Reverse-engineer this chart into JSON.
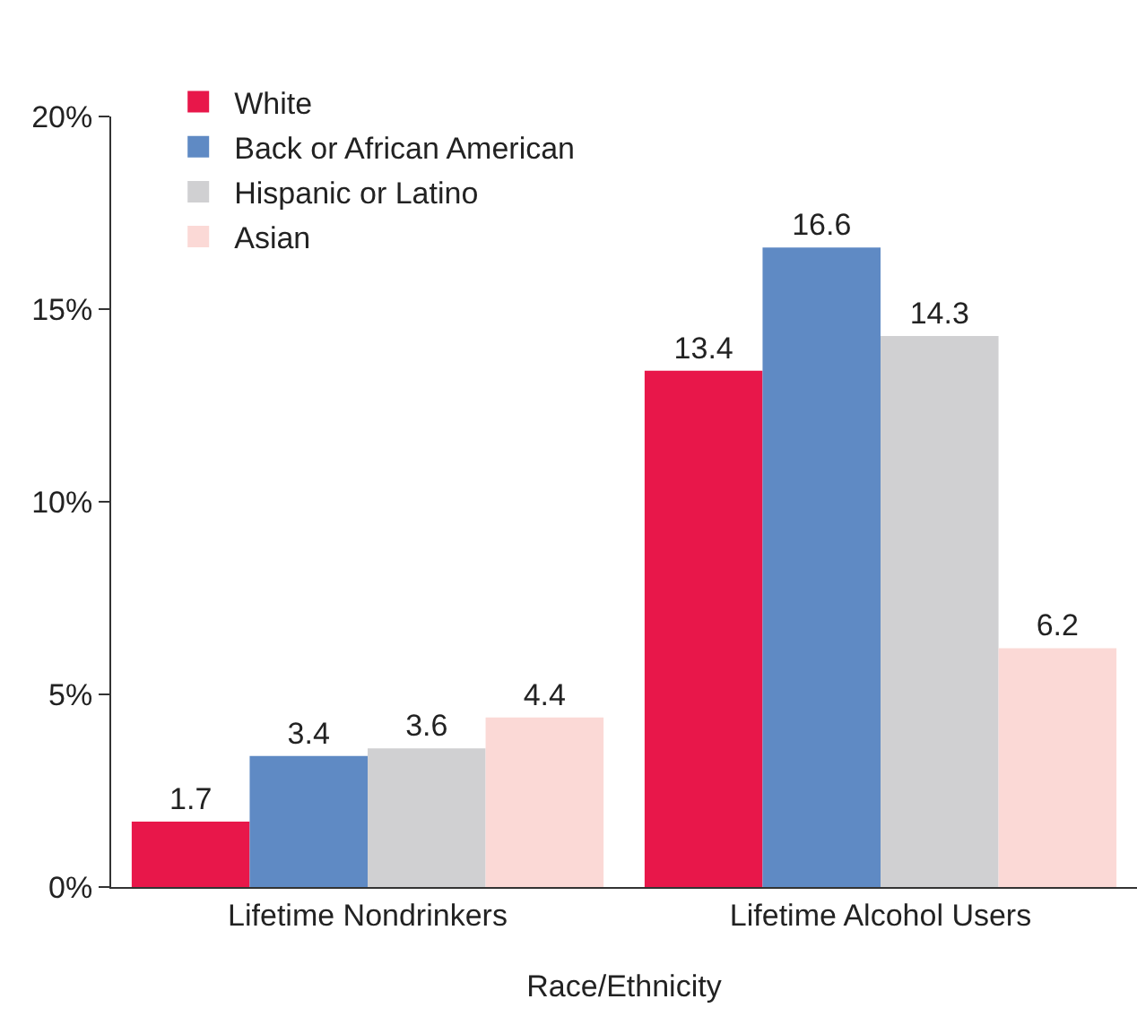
{
  "chart_data": {
    "type": "bar",
    "xlabel": "Race/Ethnicity",
    "categories": [
      "Lifetime Nondrinkers",
      "Lifetime Alcohol Users"
    ],
    "series": [
      {
        "name": "White",
        "color": "#e8174a",
        "values": [
          1.7,
          13.4
        ]
      },
      {
        "name": "Back or African American",
        "color": "#5f8ac4",
        "values": [
          3.4,
          16.6
        ]
      },
      {
        "name": "Hispanic or Latino",
        "color": "#d0d0d2",
        "values": [
          3.6,
          14.3
        ]
      },
      {
        "name": "Asian",
        "color": "#fbd9d6",
        "values": [
          4.4,
          6.2
        ]
      }
    ],
    "ylim": [
      0,
      20
    ],
    "yticks": [
      {
        "value": 0,
        "label": "0%"
      },
      {
        "value": 5,
        "label": "5%"
      },
      {
        "value": 10,
        "label": "10%"
      },
      {
        "value": 15,
        "label": "15%"
      },
      {
        "value": 20,
        "label": "20%"
      }
    ],
    "data_labels": true,
    "grid": false,
    "legend": "top left"
  }
}
